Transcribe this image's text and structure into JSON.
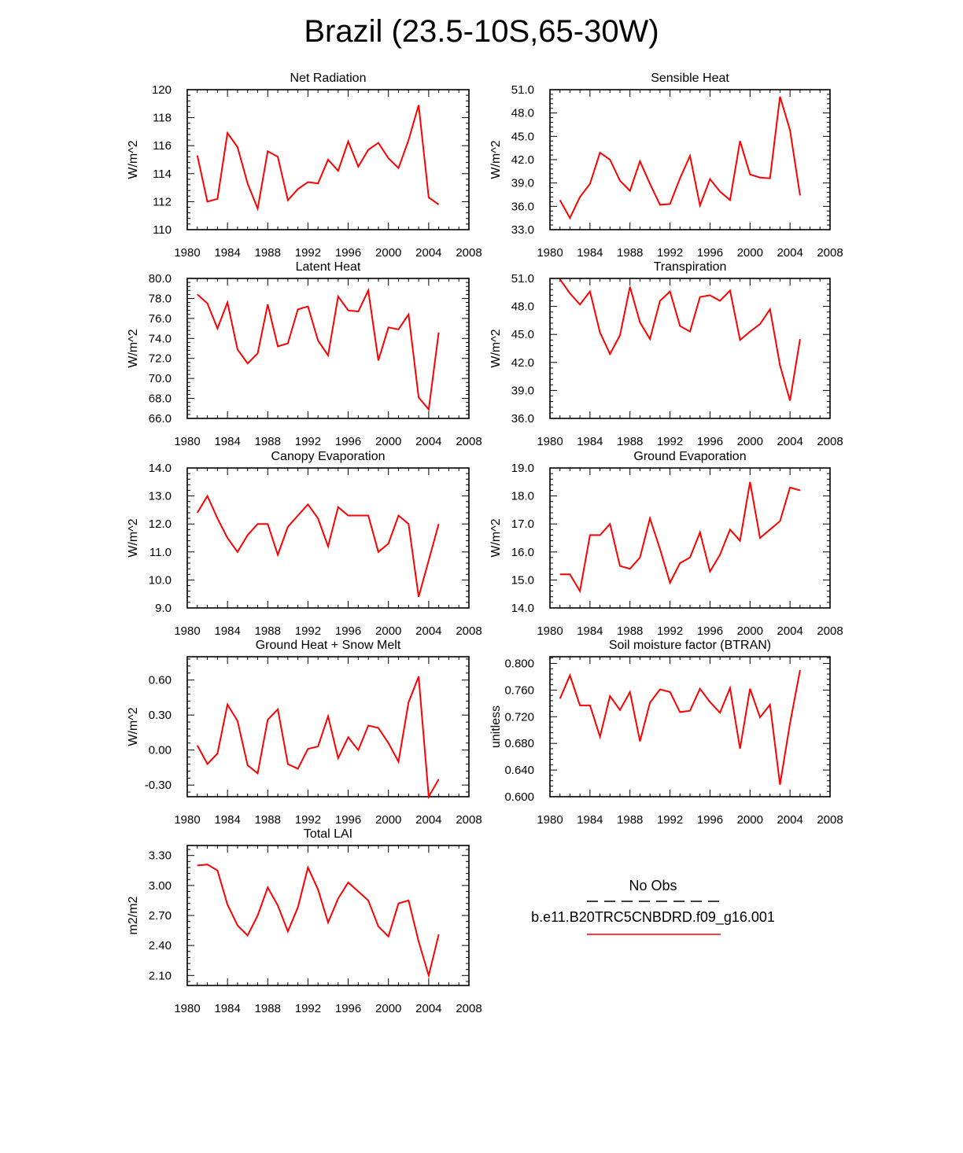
{
  "figure": {
    "title": "Brazil (23.5-10S,65-30W)"
  },
  "legend": {
    "obs_label": "No Obs",
    "model_label": "b.e11.B20TRC5CNBDRD.f09_g16.001",
    "obs_color": "#000000",
    "model_color": "#ff0000"
  },
  "chart_data": [
    {
      "type": "line",
      "title": "Net Radiation",
      "ylabel": "W/m^2",
      "xlim": [
        1980,
        2008
      ],
      "ylim": [
        110,
        120
      ],
      "xticks": [
        1980,
        1984,
        1988,
        1992,
        1996,
        2000,
        2004,
        2008
      ],
      "xtick_labels": [
        "1980",
        "1984",
        "1988",
        "1992",
        "1996",
        "2000",
        "2004",
        "2008"
      ],
      "yticks": [
        110,
        112,
        114,
        116,
        118,
        120
      ],
      "ytick_labels": [
        "110",
        "112",
        "114",
        "116",
        "118",
        "120"
      ],
      "series": [
        {
          "color": "#ff0000",
          "x": [
            1981,
            1982,
            1983,
            1984,
            1985,
            1986,
            1987,
            1988,
            1989,
            1990,
            1991,
            1992,
            1993,
            1994,
            1995,
            1996,
            1997,
            1998,
            1999,
            2000,
            2001,
            2002,
            2003,
            2004,
            2005
          ],
          "y": [
            115.3,
            112.0,
            112.2,
            116.9,
            115.9,
            113.3,
            111.5,
            115.6,
            115.2,
            112.1,
            112.9,
            113.4,
            113.3,
            115.0,
            114.2,
            116.3,
            114.5,
            115.7,
            116.2,
            115.1,
            114.4,
            116.4,
            118.9,
            112.3,
            111.8
          ]
        }
      ]
    },
    {
      "type": "line",
      "title": "Sensible Heat",
      "ylabel": "W/m^2",
      "xlim": [
        1980,
        2008
      ],
      "ylim": [
        33,
        51
      ],
      "xticks": [
        1980,
        1984,
        1988,
        1992,
        1996,
        2000,
        2004,
        2008
      ],
      "xtick_labels": [
        "1980",
        "1984",
        "1988",
        "1992",
        "1996",
        "2000",
        "2004",
        "2008"
      ],
      "yticks": [
        33,
        36,
        39,
        42,
        45,
        48,
        51
      ],
      "ytick_labels": [
        "33.0",
        "36.0",
        "39.0",
        "42.0",
        "45.0",
        "48.0",
        "51.0"
      ],
      "series": [
        {
          "color": "#ff0000",
          "x": [
            1981,
            1982,
            1983,
            1984,
            1985,
            1986,
            1987,
            1988,
            1989,
            1990,
            1991,
            1992,
            1993,
            1994,
            1995,
            1996,
            1997,
            1998,
            1999,
            2000,
            2001,
            2002,
            2003,
            2004,
            2005
          ],
          "y": [
            36.8,
            34.5,
            37.2,
            38.9,
            42.9,
            42.0,
            39.3,
            38.0,
            41.8,
            38.9,
            36.2,
            36.3,
            39.6,
            42.5,
            36.1,
            39.5,
            37.9,
            36.8,
            44.4,
            40.1,
            39.7,
            39.6,
            50.1,
            45.8,
            37.4
          ]
        }
      ]
    },
    {
      "type": "line",
      "title": "Latent Heat",
      "ylabel": "W/m^2",
      "xlim": [
        1980,
        2008
      ],
      "ylim": [
        66,
        80
      ],
      "xticks": [
        1980,
        1984,
        1988,
        1992,
        1996,
        2000,
        2004,
        2008
      ],
      "xtick_labels": [
        "1980",
        "1984",
        "1988",
        "1992",
        "1996",
        "2000",
        "2004",
        "2008"
      ],
      "yticks": [
        66,
        68,
        70,
        72,
        74,
        76,
        78,
        80
      ],
      "ytick_labels": [
        "66.0",
        "68.0",
        "70.0",
        "72.0",
        "74.0",
        "76.0",
        "78.0",
        "80.0"
      ],
      "series": [
        {
          "color": "#ff0000",
          "x": [
            1981,
            1982,
            1983,
            1984,
            1985,
            1986,
            1987,
            1988,
            1989,
            1990,
            1991,
            1992,
            1993,
            1994,
            1995,
            1996,
            1997,
            1998,
            1999,
            2000,
            2001,
            2002,
            2003,
            2004,
            2005
          ],
          "y": [
            78.4,
            77.5,
            75.0,
            77.6,
            72.9,
            71.5,
            72.5,
            77.4,
            73.2,
            73.5,
            76.9,
            77.2,
            73.8,
            72.3,
            78.2,
            76.8,
            76.7,
            78.8,
            71.8,
            75.1,
            74.9,
            76.4,
            68.1,
            66.9,
            74.6
          ]
        }
      ]
    },
    {
      "type": "line",
      "title": "Transpiration",
      "ylabel": "W/m^2",
      "xlim": [
        1980,
        2008
      ],
      "ylim": [
        36,
        51
      ],
      "xticks": [
        1980,
        1984,
        1988,
        1992,
        1996,
        2000,
        2004,
        2008
      ],
      "xtick_labels": [
        "1980",
        "1984",
        "1988",
        "1992",
        "1996",
        "2000",
        "2004",
        "2008"
      ],
      "yticks": [
        36,
        39,
        42,
        45,
        48,
        51
      ],
      "ytick_labels": [
        "36.0",
        "39.0",
        "42.0",
        "45.0",
        "48.0",
        "51.0"
      ],
      "series": [
        {
          "color": "#ff0000",
          "x": [
            1981,
            1982,
            1983,
            1984,
            1985,
            1986,
            1987,
            1988,
            1989,
            1990,
            1991,
            1992,
            1993,
            1994,
            1995,
            1996,
            1997,
            1998,
            1999,
            2000,
            2001,
            2002,
            2003,
            2004,
            2005
          ],
          "y": [
            50.9,
            49.4,
            48.2,
            49.6,
            45.2,
            42.9,
            44.9,
            50.1,
            46.3,
            44.5,
            48.6,
            49.6,
            45.9,
            45.3,
            49.0,
            49.2,
            48.6,
            49.7,
            44.4,
            45.3,
            46.1,
            47.7,
            41.7,
            37.9,
            44.5
          ]
        }
      ]
    },
    {
      "type": "line",
      "title": "Canopy Evaporation",
      "ylabel": "W/m^2",
      "xlim": [
        1980,
        2008
      ],
      "ylim": [
        9,
        14
      ],
      "xticks": [
        1980,
        1984,
        1988,
        1992,
        1996,
        2000,
        2004,
        2008
      ],
      "xtick_labels": [
        "1980",
        "1984",
        "1988",
        "1992",
        "1996",
        "2000",
        "2004",
        "2008"
      ],
      "yticks": [
        9,
        10,
        11,
        12,
        13,
        14
      ],
      "ytick_labels": [
        "9.0",
        "10.0",
        "11.0",
        "12.0",
        "13.0",
        "14.0"
      ],
      "series": [
        {
          "color": "#ff0000",
          "x": [
            1981,
            1982,
            1983,
            1984,
            1985,
            1986,
            1987,
            1988,
            1989,
            1990,
            1991,
            1992,
            1993,
            1994,
            1995,
            1996,
            1997,
            1998,
            1999,
            2000,
            2001,
            2002,
            2003,
            2004,
            2005
          ],
          "y": [
            12.4,
            13.0,
            12.2,
            11.5,
            11.0,
            11.6,
            12.0,
            12.0,
            10.9,
            11.9,
            12.3,
            12.7,
            12.2,
            11.2,
            12.6,
            12.3,
            12.3,
            12.3,
            11.0,
            11.3,
            12.3,
            12.0,
            9.4,
            10.7,
            12.0
          ]
        }
      ]
    },
    {
      "type": "line",
      "title": "Ground Evaporation",
      "ylabel": "W/m^2",
      "xlim": [
        1980,
        2008
      ],
      "ylim": [
        14,
        19
      ],
      "xticks": [
        1980,
        1984,
        1988,
        1992,
        1996,
        2000,
        2004,
        2008
      ],
      "xtick_labels": [
        "1980",
        "1984",
        "1988",
        "1992",
        "1996",
        "2000",
        "2004",
        "2008"
      ],
      "yticks": [
        14,
        15,
        16,
        17,
        18,
        19
      ],
      "ytick_labels": [
        "14.0",
        "15.0",
        "16.0",
        "17.0",
        "18.0",
        "19.0"
      ],
      "series": [
        {
          "color": "#ff0000",
          "x": [
            1981,
            1982,
            1983,
            1984,
            1985,
            1986,
            1987,
            1988,
            1989,
            1990,
            1991,
            1992,
            1993,
            1994,
            1995,
            1996,
            1997,
            1998,
            1999,
            2000,
            2001,
            2002,
            2003,
            2004,
            2005
          ],
          "y": [
            15.2,
            15.2,
            14.6,
            16.6,
            16.6,
            17.0,
            15.5,
            15.4,
            15.8,
            17.2,
            16.1,
            14.9,
            15.6,
            15.8,
            16.7,
            15.3,
            15.9,
            16.8,
            16.4,
            18.5,
            16.5,
            16.8,
            17.1,
            18.3,
            18.2
          ]
        }
      ]
    },
    {
      "type": "line",
      "title": "Ground Heat + Snow Melt",
      "ylabel": "W/m^2",
      "xlim": [
        1980,
        2008
      ],
      "ylim": [
        -0.4,
        0.8
      ],
      "xticks": [
        1980,
        1984,
        1988,
        1992,
        1996,
        2000,
        2004,
        2008
      ],
      "xtick_labels": [
        "1980",
        "1984",
        "1988",
        "1992",
        "1996",
        "2000",
        "2004",
        "2008"
      ],
      "yticks": [
        -0.3,
        0.0,
        0.3,
        0.6
      ],
      "ytick_labels": [
        "-0.30",
        "0.00",
        "0.30",
        "0.60"
      ],
      "series": [
        {
          "color": "#ff0000",
          "x": [
            1981,
            1982,
            1983,
            1984,
            1985,
            1986,
            1987,
            1988,
            1989,
            1990,
            1991,
            1992,
            1993,
            1994,
            1995,
            1996,
            1997,
            1998,
            1999,
            2000,
            2001,
            2002,
            2003,
            2004,
            2005
          ],
          "y": [
            0.04,
            -0.12,
            -0.03,
            0.39,
            0.25,
            -0.13,
            -0.2,
            0.26,
            0.35,
            -0.12,
            -0.16,
            0.01,
            0.03,
            0.29,
            -0.07,
            0.11,
            0.0,
            0.21,
            0.19,
            0.06,
            -0.1,
            0.41,
            0.63,
            -0.4,
            -0.25
          ]
        }
      ]
    },
    {
      "type": "line",
      "title": "Soil moisture factor (BTRAN)",
      "ylabel": "unitless",
      "xlim": [
        1980,
        2008
      ],
      "ylim": [
        0.6,
        0.81
      ],
      "xticks": [
        1980,
        1984,
        1988,
        1992,
        1996,
        2000,
        2004,
        2008
      ],
      "xtick_labels": [
        "1980",
        "1984",
        "1988",
        "1992",
        "1996",
        "2000",
        "2004",
        "2008"
      ],
      "yticks": [
        0.6,
        0.64,
        0.68,
        0.72,
        0.76,
        0.8
      ],
      "ytick_labels": [
        "0.600",
        "0.640",
        "0.680",
        "0.720",
        "0.760",
        "0.800"
      ],
      "series": [
        {
          "color": "#ff0000",
          "x": [
            1981,
            1982,
            1983,
            1984,
            1985,
            1986,
            1987,
            1988,
            1989,
            1990,
            1991,
            1992,
            1993,
            1994,
            1995,
            1996,
            1997,
            1998,
            1999,
            2000,
            2001,
            2002,
            2003,
            2004,
            2005
          ],
          "y": [
            0.747,
            0.782,
            0.737,
            0.737,
            0.69,
            0.751,
            0.73,
            0.757,
            0.683,
            0.741,
            0.761,
            0.757,
            0.727,
            0.729,
            0.762,
            0.742,
            0.726,
            0.763,
            0.672,
            0.762,
            0.719,
            0.738,
            0.618,
            0.71,
            0.79
          ]
        }
      ]
    },
    {
      "type": "line",
      "title": "Total LAI",
      "ylabel": "m2/m2",
      "xlim": [
        1980,
        2008
      ],
      "ylim": [
        2.0,
        3.4
      ],
      "xticks": [
        1980,
        1984,
        1988,
        1992,
        1996,
        2000,
        2004,
        2008
      ],
      "xtick_labels": [
        "1980",
        "1984",
        "1988",
        "1992",
        "1996",
        "2000",
        "2004",
        "2008"
      ],
      "yticks": [
        2.1,
        2.4,
        2.7,
        3.0,
        3.3
      ],
      "ytick_labels": [
        "2.10",
        "2.40",
        "2.70",
        "3.00",
        "3.30"
      ],
      "series": [
        {
          "color": "#ff0000",
          "x": [
            1981,
            1982,
            1983,
            1984,
            1985,
            1986,
            1987,
            1988,
            1989,
            1990,
            1991,
            1992,
            1993,
            1994,
            1995,
            1996,
            1997,
            1998,
            1999,
            2000,
            2001,
            2002,
            2003,
            2004,
            2005
          ],
          "y": [
            3.2,
            3.21,
            3.15,
            2.81,
            2.6,
            2.5,
            2.7,
            2.98,
            2.8,
            2.54,
            2.78,
            3.18,
            2.96,
            2.63,
            2.87,
            3.03,
            2.94,
            2.85,
            2.59,
            2.49,
            2.82,
            2.85,
            2.44,
            2.1,
            2.51
          ]
        }
      ]
    }
  ]
}
